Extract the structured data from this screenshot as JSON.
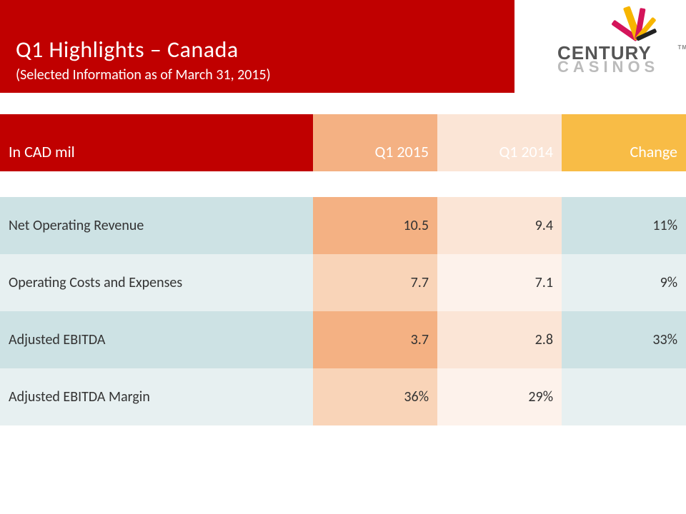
{
  "header": {
    "title": "Q1 Highlights – Canada",
    "subtitle": "(Selected Information as of March 31, 2015)",
    "bg_color": "#c00000"
  },
  "logo": {
    "line1": "CENTURY",
    "line2": "CASINOS",
    "tm": "TM"
  },
  "table": {
    "columns": {
      "label": "In CAD mil",
      "q1": "Q1 2015",
      "q2": "Q1 2014",
      "change": "Change"
    },
    "header_colors": {
      "label": "#c00000",
      "q1": "#f4b183",
      "q2": "#fbe5d6",
      "change": "#f8bc46"
    },
    "row_colors_primary": {
      "label": "#cde2e4",
      "q1": "#f4b183",
      "q2": "#fbe5d6",
      "change": "#cde2e4"
    },
    "row_colors_alt": {
      "label": "#e7f0f1",
      "q1": "#f9d4b8",
      "q2": "#fdf2eb",
      "change": "#e7f0f1"
    },
    "rows": [
      {
        "label": "Net Operating Revenue",
        "q1": "10.5",
        "q2": "9.4",
        "change": "11%"
      },
      {
        "label": "Operating Costs and Expenses",
        "q1": "7.7",
        "q2": "7.1",
        "change": "9%"
      },
      {
        "label": "Adjusted EBITDA",
        "q1": "3.7",
        "q2": "2.8",
        "change": "33%"
      },
      {
        "label": "Adjusted EBITDA Margin",
        "q1": "36%",
        "q2": "29%",
        "change": ""
      }
    ]
  }
}
